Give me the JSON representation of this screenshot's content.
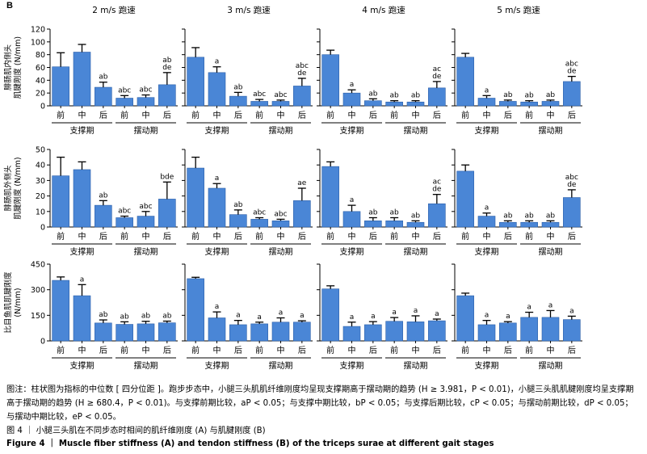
{
  "panel_label": "B",
  "speeds": [
    "2 m/s 跑速",
    "3 m/s 跑速",
    "4 m/s 跑速",
    "5 m/s 跑速"
  ],
  "phase_labels": {
    "support": "支撑期",
    "swing": "摆动期"
  },
  "bar_color": "#4a86d6",
  "note": "图注：柱状图为指标的中位数 [ 四分位距 ]。跑步步态中，小腿三头肌肌纤维刚度均呈现支撑期高于摆动期的趋势 (H ≥ 3.981，P < 0.01)，小腿三头肌肌腱刚度均呈支撑期高于摆动期的趋势 (H ≥ 680.4，P < 0.01)。与支撑前期比较，aP < 0.05；与支撑中期比较，bP < 0.05；与支撑后期比较，cP < 0.05；与摆动前期比较，dP < 0.05；与摆动中期比较，eP < 0.05。",
  "figure_title": "图 4 ｜ 小腿三头肌在不同步态时相间的肌纤维刚度 (A) 与肌腱刚度 (B)",
  "figure_title_en": "Figure 4 ｜ Muscle fiber stiffness (A) and tendon stiffness (B) of the triceps surae at different gait stages",
  "chart_data": [
    {
      "type": "bar",
      "title": "2 m/s 跑速",
      "ylabel": "腓肠肌内侧头 肌腱刚度 (N/mm)",
      "ylim": [
        0,
        120
      ],
      "yticks": [
        0,
        20,
        40,
        60,
        80,
        100,
        120
      ],
      "categories": [
        "前",
        "中",
        "后",
        "前",
        "中",
        "后"
      ],
      "values": [
        61,
        84,
        29,
        12,
        13,
        33
      ],
      "errors": [
        22,
        12,
        8,
        4,
        4,
        19
      ],
      "annotations": [
        "",
        "",
        "ab",
        "abc",
        "abc",
        "ab de"
      ]
    },
    {
      "type": "bar",
      "title": "3 m/s 跑速",
      "ylabel": "",
      "ylim": [
        0,
        120
      ],
      "yticks": [
        0,
        20,
        40,
        60,
        80,
        100,
        120
      ],
      "categories": [
        "前",
        "中",
        "后",
        "前",
        "中",
        "后"
      ],
      "values": [
        76,
        52,
        15,
        7,
        7,
        31
      ],
      "errors": [
        15,
        9,
        6,
        3,
        2,
        12
      ],
      "annotations": [
        "",
        "a",
        "ab",
        "abc",
        "abc",
        "abc de"
      ]
    },
    {
      "type": "bar",
      "title": "4 m/s 跑速",
      "ylabel": "",
      "ylim": [
        0,
        120
      ],
      "yticks": [
        0,
        20,
        40,
        60,
        80,
        100,
        120
      ],
      "categories": [
        "前",
        "中",
        "后",
        "前",
        "中",
        "后"
      ],
      "values": [
        80,
        20,
        8,
        6,
        6,
        28
      ],
      "errors": [
        7,
        5,
        3,
        2,
        2,
        10
      ],
      "annotations": [
        "",
        "a",
        "ab",
        "ab",
        "ab",
        "ac de"
      ]
    },
    {
      "type": "bar",
      "title": "5 m/s 跑速",
      "ylabel": "",
      "ylim": [
        0,
        120
      ],
      "yticks": [
        0,
        20,
        40,
        60,
        80,
        100,
        120
      ],
      "categories": [
        "前",
        "中",
        "后",
        "前",
        "中",
        "后"
      ],
      "values": [
        76,
        12,
        7,
        6,
        7,
        38
      ],
      "errors": [
        6,
        4,
        2,
        2,
        2,
        8
      ],
      "annotations": [
        "",
        "a",
        "ab",
        "ab",
        "ab",
        "abc de"
      ]
    },
    {
      "type": "bar",
      "title": "",
      "ylabel": "腓肠肌外侧头 肌腱刚度 (N/mm)",
      "ylim": [
        0,
        50
      ],
      "yticks": [
        0,
        10,
        20,
        30,
        40,
        50
      ],
      "categories": [
        "前",
        "中",
        "后",
        "前",
        "中",
        "后"
      ],
      "values": [
        33,
        37,
        14,
        6,
        7,
        18
      ],
      "errors": [
        12,
        5,
        3,
        1,
        3,
        11
      ],
      "annotations": [
        "",
        "",
        "ab",
        "abc",
        "abc",
        "bde"
      ]
    },
    {
      "type": "bar",
      "title": "",
      "ylabel": "",
      "ylim": [
        0,
        50
      ],
      "yticks": [
        0,
        10,
        20,
        30,
        40,
        50
      ],
      "categories": [
        "前",
        "中",
        "后",
        "前",
        "中",
        "后"
      ],
      "values": [
        38,
        25,
        8,
        5,
        4,
        17
      ],
      "errors": [
        7,
        3,
        3,
        1,
        1,
        8
      ],
      "annotations": [
        "",
        "a",
        "ab",
        "abc",
        "abc",
        "ae"
      ]
    },
    {
      "type": "bar",
      "title": "",
      "ylabel": "",
      "ylim": [
        0,
        50
      ],
      "yticks": [
        0,
        10,
        20,
        30,
        40,
        50
      ],
      "categories": [
        "前",
        "中",
        "后",
        "前",
        "中",
        "后"
      ],
      "values": [
        39,
        10,
        4,
        4,
        3,
        15
      ],
      "errors": [
        3,
        4,
        2,
        2,
        1,
        6
      ],
      "annotations": [
        "",
        "a",
        "ab",
        "ab",
        "ab",
        "ac de"
      ]
    },
    {
      "type": "bar",
      "title": "",
      "ylabel": "",
      "ylim": [
        0,
        50
      ],
      "yticks": [
        0,
        10,
        20,
        30,
        40,
        50
      ],
      "categories": [
        "前",
        "中",
        "后",
        "前",
        "中",
        "后"
      ],
      "values": [
        36,
        7,
        3,
        3,
        3,
        19
      ],
      "errors": [
        4,
        2,
        1,
        1,
        1,
        5
      ],
      "annotations": [
        "",
        "a",
        "ab",
        "ab",
        "ab",
        "abc de"
      ]
    },
    {
      "type": "bar",
      "title": "",
      "ylabel": "比目鱼肌肌腱刚度 (N/mm)",
      "ylim": [
        0,
        450
      ],
      "yticks": [
        0,
        150,
        300,
        450
      ],
      "categories": [
        "前",
        "中",
        "后",
        "前",
        "中",
        "后"
      ],
      "values": [
        355,
        265,
        105,
        97,
        100,
        106
      ],
      "errors": [
        20,
        65,
        18,
        15,
        15,
        10
      ],
      "annotations": [
        "",
        "a",
        "ab",
        "ab",
        "ab",
        "ab"
      ]
    },
    {
      "type": "bar",
      "title": "",
      "ylabel": "",
      "ylim": [
        0,
        450
      ],
      "yticks": [
        0,
        150,
        300,
        450
      ],
      "categories": [
        "前",
        "中",
        "后",
        "前",
        "中",
        "后"
      ],
      "values": [
        365,
        135,
        95,
        100,
        110,
        110
      ],
      "errors": [
        8,
        35,
        25,
        10,
        25,
        8
      ],
      "annotations": [
        "",
        "a",
        "a",
        "a",
        "a",
        "a"
      ]
    },
    {
      "type": "bar",
      "title": "",
      "ylabel": "",
      "ylim": [
        0,
        450
      ],
      "yticks": [
        0,
        150,
        300,
        450
      ],
      "categories": [
        "前",
        "中",
        "后",
        "前",
        "中",
        "后"
      ],
      "values": [
        305,
        85,
        95,
        115,
        112,
        118
      ],
      "errors": [
        18,
        25,
        18,
        22,
        35,
        10
      ],
      "annotations": [
        "",
        "a",
        "a",
        "a",
        "a",
        "a"
      ]
    },
    {
      "type": "bar",
      "title": "",
      "ylabel": "",
      "ylim": [
        0,
        450
      ],
      "yticks": [
        0,
        150,
        300,
        450
      ],
      "categories": [
        "前",
        "中",
        "后",
        "前",
        "中",
        "后"
      ],
      "values": [
        265,
        95,
        105,
        138,
        138,
        125
      ],
      "errors": [
        15,
        25,
        8,
        30,
        40,
        20
      ],
      "annotations": [
        "",
        "a",
        "a",
        "a",
        "a",
        "a"
      ]
    }
  ]
}
